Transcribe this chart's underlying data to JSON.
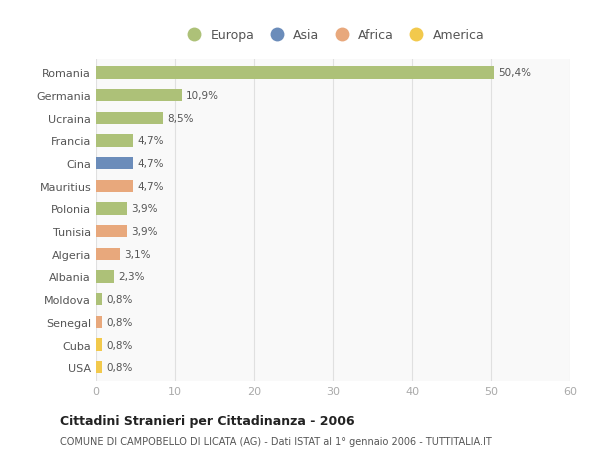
{
  "countries": [
    "Romania",
    "Germania",
    "Ucraina",
    "Francia",
    "Cina",
    "Mauritius",
    "Polonia",
    "Tunisia",
    "Algeria",
    "Albania",
    "Moldova",
    "Senegal",
    "Cuba",
    "USA"
  ],
  "values": [
    50.4,
    10.9,
    8.5,
    4.7,
    4.7,
    4.7,
    3.9,
    3.9,
    3.1,
    2.3,
    0.8,
    0.8,
    0.8,
    0.8
  ],
  "labels": [
    "50,4%",
    "10,9%",
    "8,5%",
    "4,7%",
    "4,7%",
    "4,7%",
    "3,9%",
    "3,9%",
    "3,1%",
    "2,3%",
    "0,8%",
    "0,8%",
    "0,8%",
    "0,8%"
  ],
  "continents": [
    "Europa",
    "Europa",
    "Europa",
    "Europa",
    "Asia",
    "Africa",
    "Europa",
    "Africa",
    "Africa",
    "Europa",
    "Europa",
    "Africa",
    "America",
    "America"
  ],
  "continent_colors": {
    "Europa": "#adc178",
    "Asia": "#6b8cba",
    "Africa": "#e8a87c",
    "America": "#f2c94c"
  },
  "legend_order": [
    "Europa",
    "Asia",
    "Africa",
    "America"
  ],
  "title": "Cittadini Stranieri per Cittadinanza - 2006",
  "subtitle": "COMUNE DI CAMPOBELLO DI LICATA (AG) - Dati ISTAT al 1° gennaio 2006 - TUTTITALIA.IT",
  "xlim": [
    0,
    60
  ],
  "xticks": [
    0,
    10,
    20,
    30,
    40,
    50,
    60
  ],
  "bg_color": "#ffffff",
  "plot_bg_color": "#f9f9f9",
  "grid_color": "#e0e0e0",
  "bar_height": 0.55,
  "label_color": "#555555",
  "ytick_color": "#555555",
  "xtick_color": "#aaaaaa"
}
